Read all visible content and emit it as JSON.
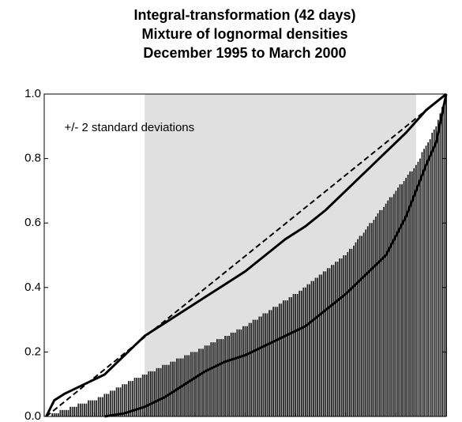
{
  "chart_data": {
    "type": "bar-line",
    "title": [
      "Integral-transformation (42 days)",
      "Mixture of lognormal densities",
      "December 1995 to March 2000"
    ],
    "annotation": "+/- 2 standard deviations",
    "shade": [
      50,
      185
    ],
    "xlim": [
      0,
      200
    ],
    "xticks": [
      25,
      50,
      75,
      100,
      125,
      150,
      175,
      200
    ],
    "ylim": [
      0,
      1
    ],
    "yticks": [
      {
        "value": 0,
        "label": "0.0"
      },
      0.2,
      0.4,
      0.6,
      0.8,
      {
        "value": 1,
        "label": "1.0"
      }
    ],
    "x": [
      1,
      2,
      3,
      4,
      5,
      6,
      7,
      8,
      9,
      10,
      11,
      12,
      13,
      14,
      15,
      16,
      17,
      18,
      19,
      20,
      21,
      22,
      23,
      24,
      25,
      26,
      27,
      28,
      29,
      30,
      31,
      32,
      33,
      34,
      35,
      36,
      37,
      38,
      39,
      40,
      41,
      42,
      43,
      44,
      45,
      46,
      47,
      48,
      49,
      50,
      51,
      52,
      53,
      54,
      55,
      56,
      57,
      58,
      59,
      60,
      61,
      62,
      63,
      64,
      65,
      66,
      67,
      68,
      69,
      70,
      71,
      72,
      73,
      74,
      75,
      76,
      77,
      78,
      79,
      80,
      81,
      82,
      83,
      84,
      85,
      86,
      87,
      88,
      89,
      90,
      91,
      92,
      93,
      94,
      95,
      96,
      97,
      98,
      99,
      100,
      101,
      102,
      103,
      104,
      105,
      106,
      107,
      108,
      109,
      110,
      111,
      112,
      113,
      114,
      115,
      116,
      117,
      118,
      119,
      120,
      121,
      122,
      123,
      124,
      125,
      126,
      127,
      128,
      129,
      130,
      131,
      132,
      133,
      134,
      135,
      136,
      137,
      138,
      139,
      140,
      141,
      142,
      143,
      144,
      145,
      146,
      147,
      148,
      149,
      150,
      151,
      152,
      153,
      154,
      155,
      156,
      157,
      158,
      159,
      160,
      161,
      162,
      163,
      164,
      165,
      166,
      167,
      168,
      169,
      170,
      171,
      172,
      173,
      174,
      175,
      176,
      177,
      178,
      179,
      180,
      181,
      182,
      183,
      184,
      185,
      186,
      187,
      188,
      189,
      190,
      191,
      192,
      193,
      194,
      195,
      196,
      197,
      198,
      199,
      200
    ],
    "values": [
      0,
      0,
      0,
      0.01,
      0.01,
      0.01,
      0.01,
      0.02,
      0.02,
      0.02,
      0.02,
      0.02,
      0.03,
      0.03,
      0.03,
      0.03,
      0.04,
      0.04,
      0.04,
      0.04,
      0.04,
      0.05,
      0.05,
      0.05,
      0.05,
      0.05,
      0.06,
      0.06,
      0.06,
      0.07,
      0.07,
      0.07,
      0.08,
      0.08,
      0.08,
      0.09,
      0.09,
      0.09,
      0.1,
      0.1,
      0.1,
      0.11,
      0.11,
      0.11,
      0.12,
      0.12,
      0.12,
      0.12,
      0.13,
      0.13,
      0.13,
      0.14,
      0.14,
      0.14,
      0.14,
      0.15,
      0.15,
      0.15,
      0.16,
      0.16,
      0.16,
      0.16,
      0.17,
      0.17,
      0.17,
      0.18,
      0.18,
      0.18,
      0.18,
      0.19,
      0.19,
      0.19,
      0.2,
      0.2,
      0.2,
      0.2,
      0.21,
      0.21,
      0.21,
      0.22,
      0.22,
      0.22,
      0.23,
      0.23,
      0.23,
      0.24,
      0.24,
      0.24,
      0.24,
      0.25,
      0.25,
      0.25,
      0.26,
      0.26,
      0.26,
      0.27,
      0.27,
      0.27,
      0.28,
      0.28,
      0.28,
      0.29,
      0.29,
      0.3,
      0.3,
      0.3,
      0.31,
      0.31,
      0.32,
      0.32,
      0.32,
      0.33,
      0.33,
      0.34,
      0.34,
      0.34,
      0.35,
      0.35,
      0.36,
      0.36,
      0.36,
      0.37,
      0.37,
      0.38,
      0.38,
      0.38,
      0.39,
      0.39,
      0.4,
      0.4,
      0.41,
      0.41,
      0.42,
      0.42,
      0.43,
      0.43,
      0.44,
      0.44,
      0.45,
      0.45,
      0.46,
      0.46,
      0.47,
      0.47,
      0.48,
      0.48,
      0.49,
      0.49,
      0.5,
      0.5,
      0.51,
      0.52,
      0.52,
      0.53,
      0.54,
      0.55,
      0.56,
      0.56,
      0.57,
      0.58,
      0.59,
      0.6,
      0.6,
      0.61,
      0.62,
      0.63,
      0.64,
      0.64,
      0.65,
      0.66,
      0.67,
      0.68,
      0.68,
      0.69,
      0.7,
      0.71,
      0.72,
      0.72,
      0.73,
      0.74,
      0.75,
      0.76,
      0.76,
      0.77,
      0.78,
      0.79,
      0.8,
      0.82,
      0.83,
      0.84,
      0.85,
      0.86,
      0.88,
      0.89,
      0.9,
      0.92,
      0.94,
      0.96,
      0.98,
      1.0
    ],
    "color": "#222222",
    "series": [
      {
        "color": "#000000",
        "dash": false,
        "x": [
          1,
          5,
          10,
          20,
          30,
          40,
          50,
          60,
          70,
          80,
          90,
          100,
          110,
          120,
          125,
          130,
          140,
          150,
          160,
          170,
          180,
          190,
          200
        ],
        "values": [
          0,
          0.05,
          0.07,
          0.1,
          0.13,
          0.19,
          0.25,
          0.29,
          0.33,
          0.37,
          0.41,
          0.45,
          0.5,
          0.55,
          0.57,
          0.59,
          0.64,
          0.7,
          0.76,
          0.82,
          0.88,
          0.95,
          1.0
        ]
      },
      {
        "color": "#000000",
        "dash": true,
        "x": [
          1,
          200
        ],
        "values": [
          0,
          1.0
        ]
      },
      {
        "color": "#000000",
        "dash": false,
        "x": [
          30,
          40,
          50,
          60,
          70,
          80,
          90,
          100,
          110,
          120,
          130,
          140,
          150,
          160,
          170,
          180,
          190,
          195,
          200
        ],
        "values": [
          0,
          0.01,
          0.03,
          0.06,
          0.1,
          0.14,
          0.17,
          0.19,
          0.22,
          0.25,
          0.28,
          0.33,
          0.38,
          0.44,
          0.5,
          0.62,
          0.78,
          0.85,
          1.0
        ]
      }
    ]
  }
}
